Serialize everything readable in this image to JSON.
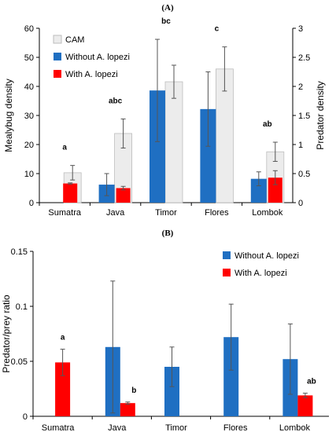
{
  "chart_data": [
    {
      "panel_label": "(A)",
      "type": "bar",
      "categories": [
        "Sumatra",
        "Java",
        "Timor",
        "Flores",
        "Lombok"
      ],
      "ylabel": "Mealybug density",
      "y2label": "Predator density",
      "ylim": [
        0,
        60
      ],
      "yticks": [
        0,
        10,
        20,
        30,
        40,
        50,
        60
      ],
      "y2lim": [
        0,
        3
      ],
      "y2ticks": [
        0,
        0.5,
        1,
        1.5,
        2,
        2.5,
        3
      ],
      "legend_position": "top-left",
      "grid": false,
      "series": [
        {
          "name": "CAM",
          "axis": "left",
          "color": "#ececec",
          "values": [
            10.3,
            23.8,
            41.6,
            46.0,
            17.5
          ],
          "errors": [
            2.5,
            5.0,
            5.7,
            7.6,
            3.3
          ]
        },
        {
          "name": "Without A. lopezi",
          "axis": "right",
          "color": "#1f6fc2",
          "values": [
            null,
            0.31,
            1.93,
            1.61,
            0.41
          ],
          "errors": [
            null,
            0.19,
            0.88,
            0.64,
            0.12
          ]
        },
        {
          "name": "With A. lopezi",
          "axis": "right",
          "color": "#ff0000",
          "values": [
            0.33,
            0.25,
            null,
            null,
            0.43
          ],
          "errors": [
            0.01,
            0.03,
            null,
            null,
            0.12
          ]
        }
      ],
      "annotations": [
        "a",
        "abc",
        "bc",
        "c",
        "ab"
      ]
    },
    {
      "panel_label": "(B)",
      "type": "bar",
      "categories": [
        "Sumatra",
        "Java",
        "Timor",
        "Flores",
        "Lombok"
      ],
      "ylabel": "Predator/prey ratio",
      "ylim": [
        0,
        0.15
      ],
      "yticks": [
        "0",
        "0.05",
        "0.1",
        "0.15"
      ],
      "legend_position": "top-right",
      "grid": false,
      "series": [
        {
          "name": "Without A. lopezi",
          "color": "#1f6fc2",
          "values": [
            null,
            0.063,
            0.045,
            0.072,
            0.052
          ],
          "errors": [
            null,
            0.06,
            0.018,
            0.03,
            0.032
          ]
        },
        {
          "name": "With A. lopezi",
          "color": "#ff0000",
          "values": [
            0.049,
            0.012,
            null,
            null,
            0.019
          ],
          "errors": [
            0.012,
            0.001,
            null,
            null,
            0.002
          ]
        }
      ],
      "annotations": {
        "Sumatra": "a",
        "Java": "b",
        "Lombok": "ab"
      }
    }
  ]
}
